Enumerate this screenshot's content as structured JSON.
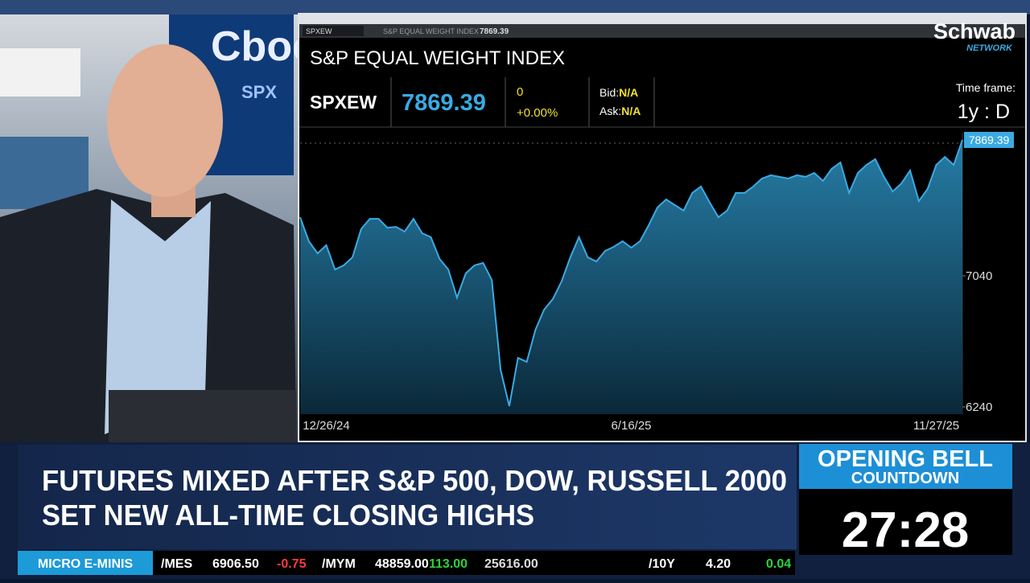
{
  "backdrop": {
    "logo": "Cboe",
    "ticker": "SPX"
  },
  "window": {
    "symbol": "SPXEW",
    "name": "S&P EQUAL WEIGHT INDEX",
    "price": "7869.39"
  },
  "quote": {
    "title": "S&P EQUAL WEIGHT INDEX",
    "symbol": "SPXEW",
    "last": "7869.39",
    "change": "0",
    "change_pct": "+0.00%",
    "bid_label": "Bid:",
    "bid": "N/A",
    "ask_label": "Ask:",
    "ask": "N/A",
    "timeframe_label": "Time frame:",
    "timeframe": "1y : D"
  },
  "chart_data": {
    "type": "area",
    "color": "#3aaae2",
    "categories": [
      null,
      null,
      null,
      "12/26/24",
      null,
      null,
      null,
      null,
      null,
      null,
      null,
      null,
      null,
      null,
      null,
      null,
      null,
      null,
      null,
      null,
      null,
      null,
      null,
      null,
      null,
      null,
      null,
      null,
      null,
      null,
      null,
      null,
      null,
      null,
      null,
      null,
      null,
      null,
      "6/16/25",
      null,
      null,
      null,
      null,
      null,
      null,
      null,
      null,
      null,
      null,
      null,
      null,
      null,
      null,
      null,
      null,
      null,
      null,
      null,
      null,
      null,
      null,
      null,
      null,
      null,
      null,
      null,
      null,
      null,
      null,
      null,
      null,
      null,
      null,
      "11/27/25",
      null,
      null,
      null
    ],
    "values": [
      7398,
      7251,
      7177,
      7227,
      7079,
      7104,
      7153,
      7325,
      7388,
      7388,
      7334,
      7339,
      7310,
      7388,
      7300,
      7276,
      7143,
      7079,
      6907,
      7055,
      7104,
      7119,
      7015,
      6466,
      6245,
      6539,
      6515,
      6711,
      6834,
      6898,
      7006,
      7153,
      7276,
      7153,
      7128,
      7192,
      7217,
      7251,
      7212,
      7251,
      7349,
      7457,
      7506,
      7472,
      7438,
      7546,
      7585,
      7487,
      7398,
      7438,
      7546,
      7546,
      7585,
      7634,
      7654,
      7644,
      7634,
      7654,
      7644,
      7668,
      7619,
      7693,
      7732,
      7546,
      7668,
      7717,
      7752,
      7644,
      7555,
      7604,
      7683,
      7496,
      7570,
      7717,
      7766,
      7717,
      7869.39
    ],
    "ylim": [
      6196,
      7889
    ],
    "yticks": [
      6240,
      7040
    ]
  },
  "brand": {
    "name": "Schwab",
    "sub": "NETWORK"
  },
  "headline": {
    "lines": [
      "FUTURES MIXED AFTER S&P 500, DOW, RUSSELL 2000",
      "SET NEW ALL-TIME CLOSING HIGHS"
    ]
  },
  "countdown": {
    "title": "OPENING BELL",
    "subtitle": "COUNTDOWN",
    "time": "27:28"
  },
  "ticker": {
    "label": "MICRO E-MINIS",
    "items": [
      {
        "symbol": "/MES",
        "price": "6906.50",
        "change": "-0.75"
      },
      {
        "symbol": "/MYM",
        "price": "48859.00",
        "change": "113.00"
      },
      {
        "price": "25616.00"
      },
      {
        "symbol": "/10Y",
        "price": "4.20",
        "change": "0.04"
      }
    ]
  }
}
